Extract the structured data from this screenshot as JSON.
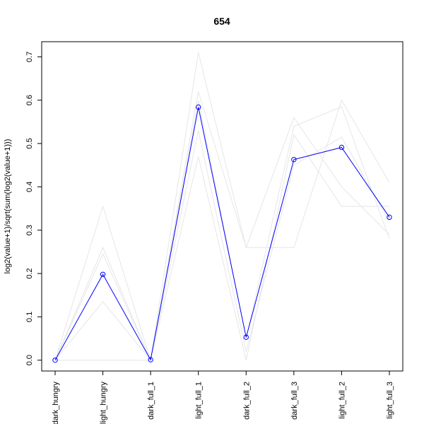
{
  "chart_data": {
    "type": "line",
    "title": "654",
    "ylabel": "log2(value+1)/sqrt(sum(log2(value+1)))",
    "xlabel": "",
    "categories": [
      "dark_hungry",
      "light_hungry",
      "dark_full_1",
      "light_full_1",
      "dark_full_2",
      "dark_full_3",
      "light_full_2",
      "light_full_3"
    ],
    "ylim": [
      -0.025,
      0.735
    ],
    "yticks": [
      0.0,
      0.1,
      0.2,
      0.3,
      0.4,
      0.5,
      0.6,
      0.7
    ],
    "ytick_labels": [
      "0.0",
      "0.1",
      "0.2",
      "0.3",
      "0.4",
      "0.5",
      "0.6",
      "0.7"
    ],
    "grid": false,
    "highlight": {
      "color": "#0000ff",
      "values": [
        0.0,
        0.198,
        0.001,
        0.584,
        0.053,
        0.463,
        0.491,
        0.33
      ]
    },
    "background_series_color": "#e6e6e6",
    "background_series": [
      [
        0.0,
        0.355,
        0.0,
        0.71,
        0.26,
        0.26,
        0.6,
        0.41
      ],
      [
        0.0,
        0.26,
        0.0,
        0.62,
        0.26,
        0.56,
        0.4,
        0.29
      ],
      [
        0.0,
        0.245,
        0.0,
        0.6,
        0.05,
        0.54,
        0.585,
        0.28
      ],
      [
        0.0,
        0.135,
        0.0,
        0.47,
        0.0,
        0.52,
        0.355,
        0.355
      ],
      [
        0.0,
        0.0,
        0.0,
        0.53,
        0.02,
        0.45,
        0.515,
        0.32
      ]
    ]
  }
}
